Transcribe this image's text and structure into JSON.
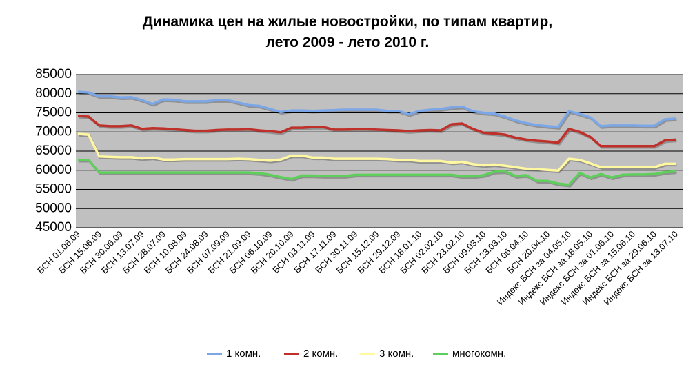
{
  "chart_data": {
    "type": "line",
    "title": [
      "Динамика цен на жилые новостройки, по типам квартир,",
      "лето 2009 - лето 2010 г."
    ],
    "categories": [
      "БСН 01.06.09",
      null,
      "БСН 15.06.09",
      null,
      "БСН 30.06.09",
      null,
      "БСН 13.07.09",
      null,
      "БСН 28.07.09",
      null,
      "БСН 10.08.09",
      null,
      "БСН 24.08.09",
      null,
      "БСН 07.09.09",
      null,
      "БСН 21.09.09",
      null,
      "БСН 06.10.09",
      null,
      "БСН 20.10.09",
      null,
      "БСН 03.11.09",
      null,
      "БСН 17.11.09",
      null,
      "БСН 30.11.09",
      null,
      "БСН 15.12.09",
      null,
      "БСН 29.12.09",
      null,
      "БСН 18.01.10",
      null,
      "БСН 02.02.10",
      null,
      "БСН 23.02.10",
      null,
      "БСН 09.03.10",
      null,
      "БСН 23.03.10",
      null,
      "БСН 06.04.10",
      null,
      "БСН 20.04.10",
      null,
      "Индекс БСН за 04.05.10",
      null,
      "Индекс БСН за 18.05.10",
      null,
      "Индекс БСН за 01.06.10",
      null,
      "Индекс БСН за 15.06.10",
      null,
      "Индекс БСН за 29.06.10",
      null,
      "Индекс БСН за 13.07.10"
    ],
    "series": [
      {
        "name": "1 комн.",
        "color": "#7ba6e8",
        "values": [
          80500,
          80300,
          79300,
          79300,
          79000,
          79100,
          78300,
          77300,
          78500,
          78400,
          78000,
          78000,
          78000,
          78300,
          78300,
          77700,
          77000,
          76800,
          76000,
          75200,
          75600,
          75600,
          75500,
          75600,
          75700,
          75800,
          75800,
          75800,
          75800,
          75500,
          75500,
          74600,
          75500,
          75800,
          76000,
          76400,
          76600,
          75400,
          75000,
          74800,
          74000,
          73000,
          72300,
          71800,
          71500,
          71300,
          75400,
          74700,
          73800,
          71500,
          71700,
          71700,
          71700,
          71600,
          71600,
          73300,
          73500
        ]
      },
      {
        "name": "2 комн.",
        "color": "#c0302a",
        "values": [
          74200,
          74000,
          71700,
          71500,
          71500,
          71700,
          70800,
          71000,
          70900,
          70700,
          70500,
          70300,
          70300,
          70500,
          70600,
          70600,
          70700,
          70400,
          70200,
          69900,
          71100,
          71100,
          71300,
          71300,
          70600,
          70600,
          70700,
          70700,
          70600,
          70500,
          70400,
          70200,
          70400,
          70500,
          70400,
          72000,
          72200,
          70800,
          69800,
          69600,
          69300,
          68500,
          68000,
          67700,
          67500,
          67200,
          70800,
          70000,
          68700,
          66300,
          66300,
          66300,
          66300,
          66300,
          66300,
          67800,
          68000
        ]
      },
      {
        "name": "3 комн.",
        "color": "#fff8a0",
        "values": [
          69500,
          69300,
          63600,
          63500,
          63400,
          63400,
          63100,
          63300,
          62800,
          62800,
          62900,
          62900,
          62900,
          62900,
          62900,
          63000,
          62900,
          62700,
          62500,
          62800,
          63800,
          63800,
          63300,
          63300,
          63000,
          63000,
          63000,
          63000,
          63000,
          62900,
          62700,
          62700,
          62400,
          62400,
          62400,
          62000,
          62200,
          61600,
          61300,
          61500,
          61200,
          60800,
          60400,
          60300,
          60100,
          59900,
          63000,
          62700,
          61800,
          60800,
          60800,
          60800,
          60800,
          60800,
          60800,
          61700,
          61700
        ]
      },
      {
        "name": "многокомн.",
        "color": "#5fcf5c",
        "values": [
          62700,
          62700,
          59400,
          59400,
          59400,
          59400,
          59400,
          59400,
          59400,
          59400,
          59400,
          59400,
          59400,
          59400,
          59400,
          59400,
          59400,
          59200,
          58800,
          58200,
          57700,
          58600,
          58600,
          58500,
          58500,
          58500,
          58800,
          58800,
          58800,
          58800,
          58800,
          58800,
          58800,
          58800,
          58800,
          58800,
          58400,
          58400,
          58700,
          59600,
          59700,
          58500,
          58700,
          57200,
          57200,
          56500,
          56200,
          59300,
          58100,
          59000,
          58100,
          58800,
          58900,
          58900,
          59000,
          59500,
          59700
        ]
      }
    ],
    "ylim": [
      45000,
      85000
    ],
    "yticks": [
      45000,
      50000,
      55000,
      60000,
      65000,
      70000,
      75000,
      80000,
      85000
    ],
    "grid": true,
    "legend": "bottom"
  }
}
